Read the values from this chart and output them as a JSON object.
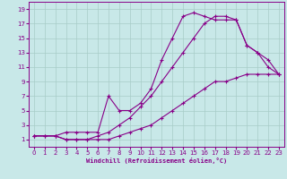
{
  "xlabel": "Windchill (Refroidissement éolien,°C)",
  "bg_color": "#c8e8e8",
  "line_color": "#880088",
  "grid_color": "#a8ccc8",
  "xlim": [
    -0.5,
    23.5
  ],
  "ylim": [
    0,
    20
  ],
  "xticks": [
    0,
    1,
    2,
    3,
    4,
    5,
    6,
    7,
    8,
    9,
    10,
    11,
    12,
    13,
    14,
    15,
    16,
    17,
    18,
    19,
    20,
    21,
    22,
    23
  ],
  "yticks": [
    1,
    3,
    5,
    7,
    9,
    11,
    13,
    15,
    17,
    19
  ],
  "curve1_x": [
    0,
    1,
    2,
    3,
    4,
    5,
    6,
    7,
    8,
    9,
    10,
    11,
    12,
    13,
    14,
    15,
    16,
    17,
    18,
    19,
    20,
    21,
    22,
    23
  ],
  "curve1_y": [
    1.5,
    1.5,
    1.5,
    1,
    1,
    1,
    1,
    1,
    1.5,
    2,
    2.5,
    3,
    4,
    5,
    6,
    7,
    8,
    9,
    9,
    9.5,
    10,
    10,
    10,
    10
  ],
  "curve2_x": [
    0,
    1,
    2,
    3,
    4,
    5,
    6,
    7,
    8,
    9,
    10,
    11,
    12,
    13,
    14,
    15,
    16,
    17,
    18,
    19,
    20,
    21,
    22,
    23
  ],
  "curve2_y": [
    1.5,
    1.5,
    1.5,
    1,
    1,
    1,
    1.5,
    2,
    3,
    4,
    5.5,
    7,
    9,
    11,
    13,
    15,
    17,
    18,
    18,
    17.5,
    14,
    13,
    12,
    10
  ],
  "curve3_x": [
    0,
    2,
    3,
    4,
    5,
    6,
    7,
    8,
    9,
    10,
    11,
    12,
    13,
    14,
    15,
    16,
    17,
    18,
    19,
    20,
    21,
    22,
    23
  ],
  "curve3_y": [
    1.5,
    1.5,
    2,
    2,
    2,
    2,
    7,
    5,
    5,
    6,
    8,
    12,
    15,
    18,
    18.5,
    18,
    17.5,
    17.5,
    17.5,
    14,
    13,
    11,
    10
  ]
}
